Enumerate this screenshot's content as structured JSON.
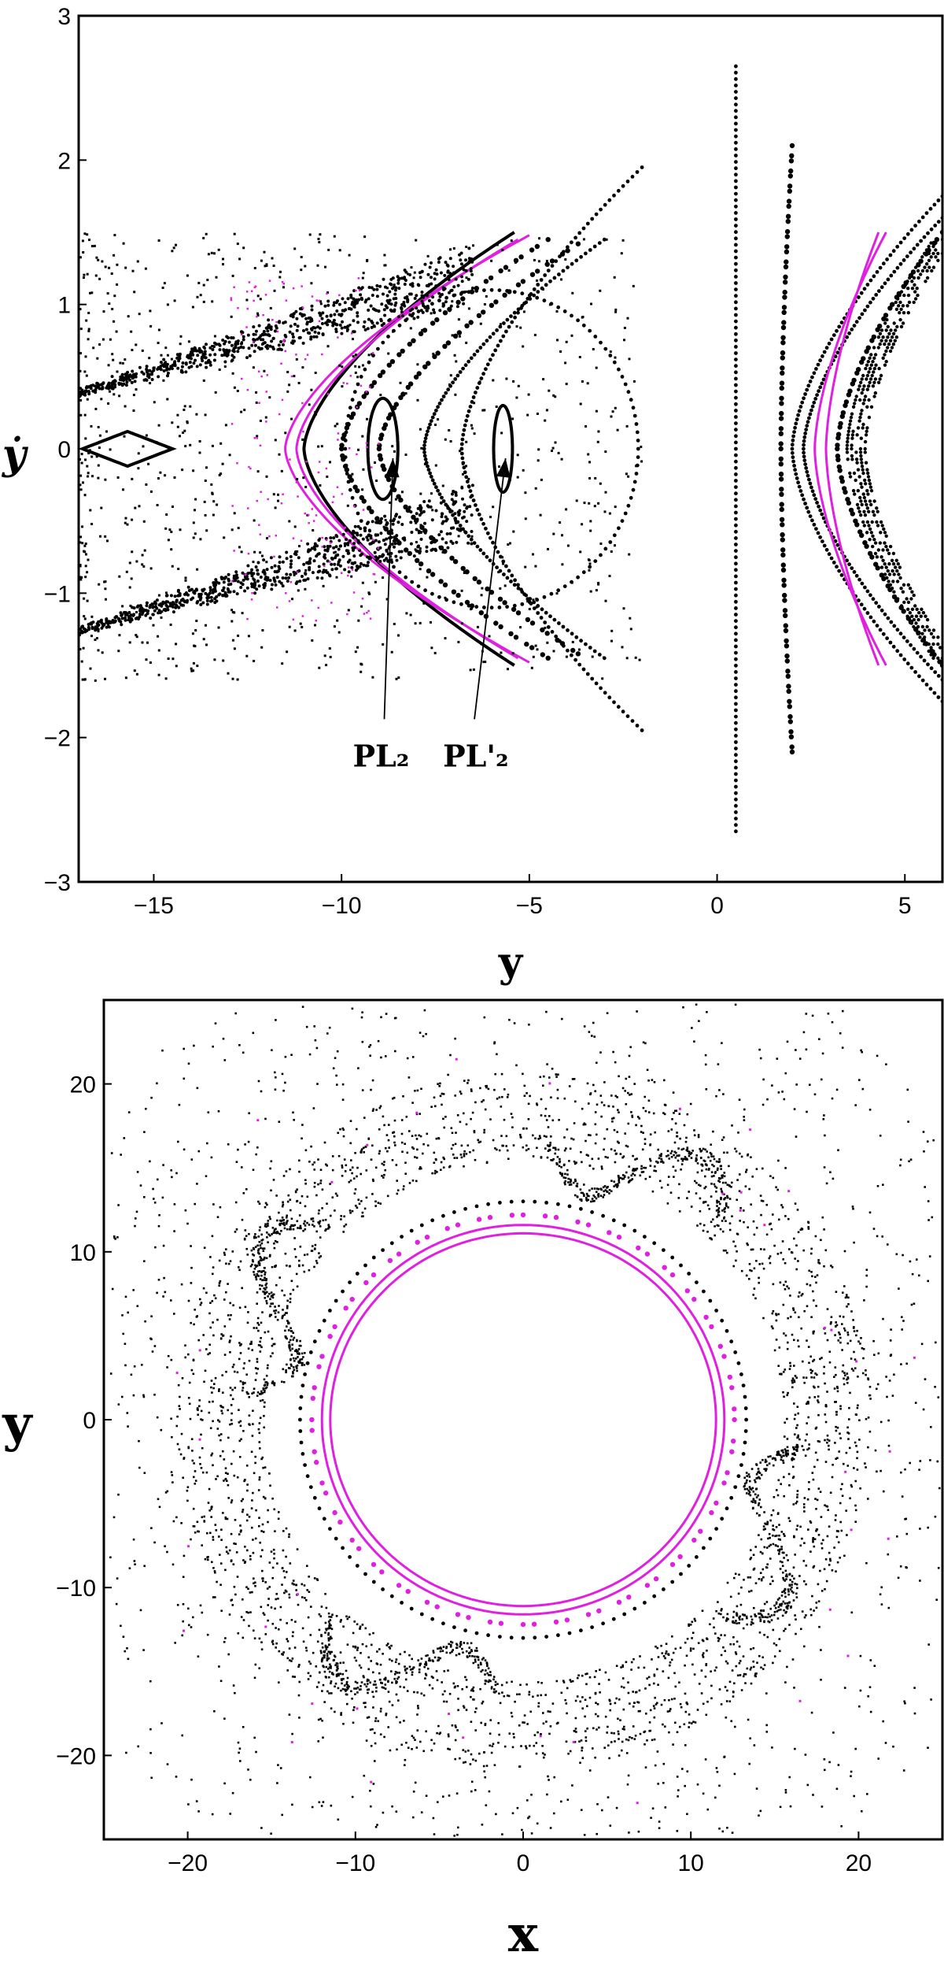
{
  "chart_data": [
    {
      "type": "scatter",
      "title": "",
      "xlabel": "y",
      "ylabel": "ẏ",
      "xlim": [
        -17,
        6
      ],
      "ylim": [
        -3,
        3
      ],
      "xticks": [
        -15,
        -10,
        -5,
        0,
        5
      ],
      "yticks": [
        -3,
        -2,
        -1,
        0,
        1,
        2,
        3
      ],
      "grid": false,
      "colors": {
        "regular": "#000000",
        "highlight": "#e020e0"
      },
      "annotations": [
        {
          "text": "PL₂",
          "label_at": [
            -9.7,
            -2.2
          ],
          "points_to": [
            -8.8,
            0.0
          ]
        },
        {
          "text": "PL'₂",
          "label_at": [
            -7.3,
            -2.2
          ],
          "points_to": [
            -5.8,
            0.0
          ]
        }
      ],
      "series": [
        {
          "role": "regular",
          "kind": "closed-curve",
          "center": [
            -6.0,
            0.0
          ],
          "shape": "ellipse",
          "rx": 3.9,
          "ry": 1.1,
          "style": "dots"
        },
        {
          "role": "regular",
          "kind": "closed-curve",
          "center": [
            -5.7,
            0.0
          ],
          "shape": "ellipse",
          "rx": 0.25,
          "ry": 0.3,
          "style": "solid"
        },
        {
          "role": "regular",
          "kind": "closed-curve",
          "center": [
            -8.9,
            0.0
          ],
          "shape": "ellipse",
          "rx": 0.4,
          "ry": 0.35,
          "style": "solid"
        },
        {
          "role": "regular",
          "kind": "closed-curve",
          "center": [
            -15.7,
            0.0
          ],
          "shape": "diamond",
          "rx": 1.2,
          "ry": 0.12,
          "style": "solid"
        },
        {
          "role": "regular",
          "kind": "arc",
          "vertex": [
            -10.0,
            0.0
          ],
          "tips": [
            [
              -4.5,
              1.45
            ],
            [
              -4.5,
              -1.45
            ]
          ],
          "style": "dashes"
        },
        {
          "role": "regular",
          "kind": "arc",
          "vertex": [
            -9.0,
            0.0
          ],
          "tips": [
            [
              -3.7,
              1.42
            ],
            [
              -3.7,
              -1.42
            ]
          ],
          "style": "dashes"
        },
        {
          "role": "regular",
          "kind": "arc",
          "vertex": [
            -7.8,
            0.0
          ],
          "tips": [
            [
              -3.0,
              1.45
            ],
            [
              -3.0,
              -1.45
            ]
          ],
          "style": "dots"
        },
        {
          "role": "regular",
          "kind": "arc",
          "vertex": [
            -6.8,
            0.0
          ],
          "tips": [
            [
              -2.0,
              1.95
            ],
            [
              -2.0,
              -1.95
            ]
          ],
          "style": "dots"
        },
        {
          "role": "regular",
          "kind": "arc",
          "vertex": [
            -11.0,
            0.0
          ],
          "tips": [
            [
              -5.4,
              1.5
            ],
            [
              -5.4,
              -1.5
            ]
          ],
          "style": "solid"
        },
        {
          "role": "highlight",
          "kind": "arc",
          "vertex": [
            -11.5,
            0.0
          ],
          "tips": [
            [
              -5.0,
              1.48
            ],
            [
              -5.0,
              -1.48
            ]
          ],
          "style": "solid"
        },
        {
          "role": "highlight",
          "kind": "arc",
          "vertex": [
            -11.2,
            0.0
          ],
          "tips": [
            [
              -5.3,
              1.45
            ],
            [
              -5.3,
              -1.45
            ]
          ],
          "style": "solid"
        },
        {
          "role": "regular",
          "kind": "separatrix",
          "y_range": [
            -17,
            -6.5
          ],
          "ydot_range": [
            0.2,
            1.45
          ],
          "style": "band"
        },
        {
          "role": "regular",
          "kind": "separatrix",
          "y_range": [
            -17,
            -6.5
          ],
          "ydot_range": [
            -1.45,
            -0.2
          ],
          "style": "band"
        },
        {
          "role": "regular",
          "kind": "chaotic-sea",
          "y_range": [
            -17,
            -2
          ],
          "ydot_range": [
            -1.6,
            1.5
          ],
          "style": "scatter"
        },
        {
          "role": "regular",
          "kind": "arc",
          "vertex": [
            0.5,
            0.0
          ],
          "tips": [
            [
              0.5,
              2.65
            ],
            [
              0.5,
              -2.65
            ]
          ],
          "style": "dots"
        },
        {
          "role": "regular",
          "kind": "arc",
          "vertex": [
            1.7,
            0.0
          ],
          "tips": [
            [
              2.0,
              2.1
            ],
            [
              2.0,
              -2.1
            ]
          ],
          "style": "dashes"
        },
        {
          "role": "regular",
          "kind": "arc",
          "vertex": [
            2.0,
            0.0
          ],
          "tips": [
            [
              6.0,
              1.75
            ],
            [
              6.0,
              -1.75
            ]
          ],
          "style": "dots"
        },
        {
          "role": "regular",
          "kind": "arc",
          "vertex": [
            2.3,
            0.0
          ],
          "tips": [
            [
              6.0,
              1.6
            ],
            [
              6.0,
              -1.6
            ]
          ],
          "style": "dots"
        },
        {
          "role": "regular",
          "kind": "arc",
          "vertex": [
            3.2,
            0.0
          ],
          "tips": [
            [
              6.0,
              1.5
            ],
            [
              6.0,
              -1.5
            ]
          ],
          "style": "dashes"
        },
        {
          "role": "regular",
          "kind": "arc",
          "vertex": [
            3.7,
            0.0
          ],
          "tips": [
            [
              6.0,
              1.45
            ],
            [
              6.0,
              -1.45
            ]
          ],
          "style": "band"
        },
        {
          "role": "highlight",
          "kind": "arc",
          "vertex": [
            2.6,
            0.0
          ],
          "tips": [
            [
              4.5,
              1.5
            ],
            [
              4.5,
              -1.5
            ]
          ],
          "style": "solid"
        },
        {
          "role": "highlight",
          "kind": "arc",
          "vertex": [
            2.9,
            0.0
          ],
          "tips": [
            [
              4.3,
              1.5
            ],
            [
              4.3,
              -1.5
            ]
          ],
          "style": "solid"
        }
      ]
    },
    {
      "type": "scatter",
      "title": "",
      "xlabel": "x",
      "ylabel": "y",
      "xlim": [
        -25,
        25
      ],
      "ylim": [
        -25,
        25
      ],
      "xticks": [
        -20,
        -10,
        0,
        10,
        20
      ],
      "yticks": [
        -20,
        -10,
        0,
        10,
        20
      ],
      "grid": false,
      "colors": {
        "regular": "#000000",
        "highlight": "#e020e0"
      },
      "series": [
        {
          "role": "highlight",
          "kind": "ring",
          "center": [
            0,
            0
          ],
          "radius": [
            11.5,
            11.1
          ],
          "style": "solid"
        },
        {
          "role": "highlight",
          "kind": "ring",
          "center": [
            0,
            0
          ],
          "radius": [
            12.0,
            11.6
          ],
          "style": "solid"
        },
        {
          "role": "highlight",
          "kind": "ring",
          "center": [
            0,
            0
          ],
          "radius": [
            12.6,
            12.2
          ],
          "style": "dashes"
        },
        {
          "role": "regular",
          "kind": "ring",
          "center": [
            0,
            0
          ],
          "radius": [
            13.3,
            13.0
          ],
          "style": "dots"
        },
        {
          "role": "regular",
          "kind": "band",
          "center": [
            0,
            0
          ],
          "radius_range": [
            15.5,
            21.0
          ],
          "style": "dense"
        },
        {
          "role": "regular",
          "kind": "lobes",
          "center": [
            0,
            0
          ],
          "radius_range": [
            14.0,
            19.0
          ],
          "count": 4,
          "style": "swirl"
        },
        {
          "role": "regular",
          "kind": "chaotic-sea",
          "center": [
            0,
            0
          ],
          "radius_range": [
            21.0,
            25.0
          ],
          "style": "scatter"
        }
      ]
    }
  ]
}
